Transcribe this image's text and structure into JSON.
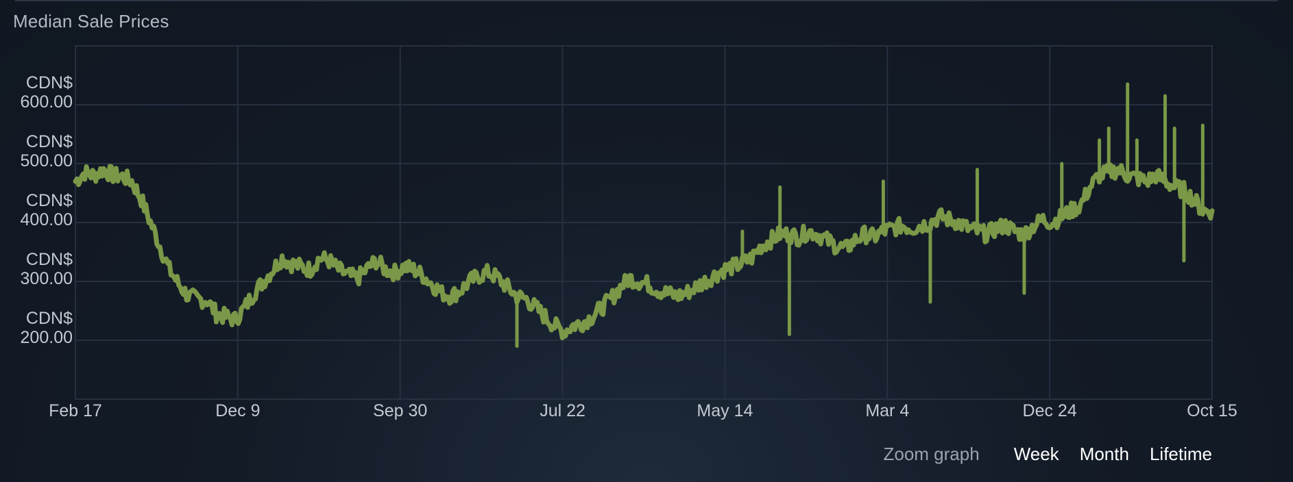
{
  "title": "Median Sale Prices",
  "zoom": {
    "label": "Zoom graph",
    "buttons": [
      "Week",
      "Month",
      "Lifetime"
    ]
  },
  "colors": {
    "line": "#7a9847",
    "grid": "#263040",
    "text": "#c3c9d1"
  },
  "chart_data": {
    "type": "line",
    "title": "Median Sale Prices",
    "xlabel": "",
    "ylabel": "",
    "currency_prefix": "CDN$",
    "y_ticks": [
      200,
      300,
      400,
      500,
      600
    ],
    "y_tick_labels": [
      [
        "CDN$",
        "200.00"
      ],
      [
        "CDN$",
        "300.00"
      ],
      [
        "CDN$",
        "400.00"
      ],
      [
        "CDN$",
        "500.00"
      ],
      [
        "CDN$",
        "600.00"
      ]
    ],
    "ylim": [
      100,
      700
    ],
    "x_tick_labels": [
      "Feb 17",
      "Dec 9",
      "Sep 30",
      "Jul 22",
      "May 14",
      "Mar 4",
      "Dec 24",
      "Oct 15"
    ],
    "grid": true,
    "legend": "none",
    "series": [
      {
        "values": [
          470,
          485,
          480,
          490,
          480,
          478,
          470,
          440,
          400,
          360,
          320,
          295,
          275,
          270,
          268,
          245,
          240,
          235,
          255,
          280,
          300,
          320,
          340,
          330,
          325,
          320,
          340,
          335,
          320,
          310,
          305,
          320,
          335,
          320,
          315,
          325,
          320,
          310,
          295,
          280,
          275,
          285,
          300,
          310,
          315,
          305,
          290,
          275,
          270,
          255,
          240,
          225,
          215,
          225,
          230,
          240,
          255,
          270,
          290,
          305,
          300,
          295,
          285,
          280,
          275,
          280,
          290,
          300,
          310,
          320,
          325,
          330,
          340,
          360,
          370,
          380,
          380,
          375,
          385,
          380,
          370,
          360,
          355,
          370,
          380,
          375,
          385,
          390,
          395,
          390,
          395,
          400,
          410,
          405,
          400,
          390,
          385,
          380,
          390,
          395,
          385,
          380,
          395,
          405,
          400,
          410,
          420,
          430,
          460,
          480,
          485,
          490,
          480,
          475,
          470,
          480,
          470,
          460,
          455,
          440,
          420,
          420
        ],
        "spikes": [
          {
            "index": 47,
            "value": 190
          },
          {
            "index": 71,
            "value": 385
          },
          {
            "index": 75,
            "value": 460
          },
          {
            "index": 76,
            "value": 210
          },
          {
            "index": 86,
            "value": 470
          },
          {
            "index": 91,
            "value": 265
          },
          {
            "index": 96,
            "value": 490
          },
          {
            "index": 101,
            "value": 280
          },
          {
            "index": 105,
            "value": 500
          },
          {
            "index": 109,
            "value": 540
          },
          {
            "index": 110,
            "value": 560
          },
          {
            "index": 112,
            "value": 635
          },
          {
            "index": 113,
            "value": 540
          },
          {
            "index": 116,
            "value": 615
          },
          {
            "index": 117,
            "value": 560
          },
          {
            "index": 118,
            "value": 335
          },
          {
            "index": 120,
            "value": 565
          }
        ]
      }
    ]
  }
}
